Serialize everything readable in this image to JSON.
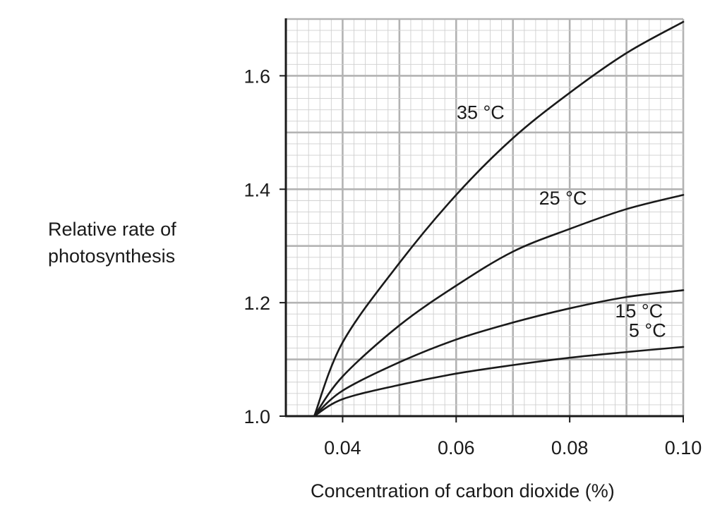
{
  "chart_data": {
    "type": "line",
    "title": "",
    "xlabel": "Concentration of carbon dioxide (%)",
    "ylabel_lines": [
      "Relative rate of",
      "photosynthesis"
    ],
    "xlim": [
      0.03,
      0.1
    ],
    "ylim": [
      1.0,
      1.7
    ],
    "xticks": [
      {
        "value": 0.04,
        "label": "0.04"
      },
      {
        "value": 0.06,
        "label": "0.06"
      },
      {
        "value": 0.08,
        "label": "0.08"
      },
      {
        "value": 0.1,
        "label": "0.10"
      }
    ],
    "yticks": [
      {
        "value": 1.0,
        "label": "1.0"
      },
      {
        "value": 1.2,
        "label": "1.2"
      },
      {
        "value": 1.4,
        "label": "1.4"
      },
      {
        "value": 1.6,
        "label": "1.6"
      }
    ],
    "grid": true,
    "series": [
      {
        "name": "35 °C",
        "label_at": [
          0.0643,
          1.524
        ],
        "x": [
          0.035,
          0.04,
          0.05,
          0.06,
          0.07,
          0.08,
          0.09,
          0.1
        ],
        "y": [
          1.0,
          1.13,
          1.27,
          1.39,
          1.49,
          1.57,
          1.64,
          1.695
        ]
      },
      {
        "name": "25 °C",
        "label_at": [
          0.0788,
          1.373
        ],
        "x": [
          0.035,
          0.04,
          0.05,
          0.06,
          0.07,
          0.08,
          0.09,
          0.1
        ],
        "y": [
          1.0,
          1.07,
          1.16,
          1.23,
          1.29,
          1.33,
          1.365,
          1.39
        ]
      },
      {
        "name": "15 °C",
        "label_at": [
          0.0922,
          1.174
        ],
        "x": [
          0.035,
          0.04,
          0.05,
          0.06,
          0.07,
          0.08,
          0.09,
          0.1
        ],
        "y": [
          1.0,
          1.045,
          1.095,
          1.135,
          1.165,
          1.19,
          1.21,
          1.222
        ]
      },
      {
        "name": "5 °C",
        "label_at": [
          0.0937,
          1.14
        ],
        "x": [
          0.035,
          0.04,
          0.05,
          0.06,
          0.07,
          0.08,
          0.09,
          0.1
        ],
        "y": [
          1.0,
          1.03,
          1.055,
          1.075,
          1.09,
          1.103,
          1.113,
          1.122
        ]
      }
    ]
  }
}
